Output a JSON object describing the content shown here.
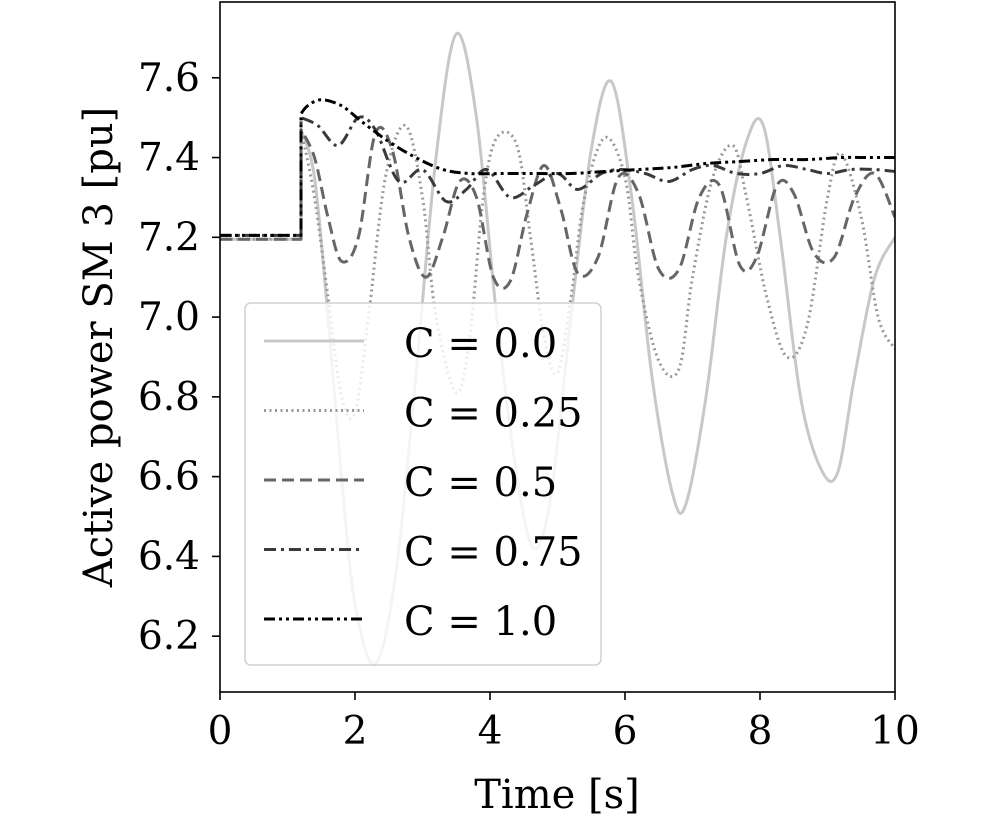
{
  "chart_data": {
    "type": "line",
    "title": "",
    "xlabel": "Time [s]",
    "ylabel": "Active power SM 3 [pu]",
    "xlim": [
      0,
      10
    ],
    "ylim": [
      6.06,
      7.79
    ],
    "xticks": [
      "0",
      "2",
      "4",
      "6",
      "8",
      "10"
    ],
    "yticks": [
      "6.2",
      "6.4",
      "6.6",
      "6.8",
      "7.0",
      "7.2",
      "7.4",
      "7.6"
    ],
    "grid": false,
    "legend_position": "lower-left",
    "series": [
      {
        "name": "C = 0.0",
        "color": "#c8c8c8",
        "style": "solid",
        "x": [
          0,
          1.2,
          1.2,
          1.4,
          1.6,
          1.8,
          2.0,
          2.3,
          2.6,
          2.9,
          3.2,
          3.5,
          3.8,
          4.1,
          4.4,
          4.65,
          4.9,
          5.2,
          5.5,
          5.8,
          6.1,
          6.4,
          6.7,
          6.9,
          7.2,
          7.5,
          7.8,
          8.05,
          8.3,
          8.6,
          8.9,
          9.15,
          9.4,
          9.7,
          10
        ],
        "values": [
          7.195,
          7.195,
          7.47,
          7.35,
          7.0,
          6.6,
          6.28,
          6.13,
          6.35,
          6.85,
          7.4,
          7.71,
          7.5,
          7.0,
          6.6,
          6.42,
          6.55,
          7.0,
          7.42,
          7.59,
          7.3,
          6.85,
          6.56,
          6.53,
          6.8,
          7.2,
          7.44,
          7.48,
          7.2,
          6.8,
          6.62,
          6.61,
          6.85,
          7.1,
          7.2
        ]
      },
      {
        "name": "C = 0.25",
        "color": "#999999",
        "style": "dotted",
        "x": [
          0,
          1.2,
          1.2,
          1.4,
          1.6,
          1.8,
          2.0,
          2.2,
          2.45,
          2.75,
          3.0,
          3.2,
          3.5,
          3.7,
          3.9,
          4.1,
          4.4,
          4.6,
          4.8,
          5.0,
          5.2,
          5.4,
          5.7,
          6.0,
          6.2,
          6.5,
          6.8,
          7.0,
          7.3,
          7.6,
          7.8,
          8.1,
          8.4,
          8.7,
          9.0,
          9.2,
          9.5,
          9.75,
          10
        ],
        "values": [
          7.195,
          7.195,
          7.47,
          7.3,
          7.05,
          6.8,
          6.76,
          7.0,
          7.35,
          7.48,
          7.3,
          7.0,
          6.81,
          6.95,
          7.3,
          7.45,
          7.43,
          7.2,
          6.95,
          6.86,
          7.05,
          7.3,
          7.45,
          7.35,
          7.1,
          6.89,
          6.87,
          7.1,
          7.35,
          7.43,
          7.3,
          7.05,
          6.9,
          6.98,
          7.3,
          7.41,
          7.25,
          7.0,
          6.92
        ]
      },
      {
        "name": "C = 0.5",
        "color": "#666666",
        "style": "dashed",
        "x": [
          0,
          1.2,
          1.2,
          1.4,
          1.6,
          1.8,
          2.05,
          2.3,
          2.55,
          2.8,
          3.05,
          3.3,
          3.55,
          3.8,
          4.05,
          4.3,
          4.55,
          4.8,
          5.05,
          5.3,
          5.6,
          5.9,
          6.2,
          6.5,
          6.8,
          7.1,
          7.4,
          7.7,
          7.95,
          8.25,
          8.5,
          8.8,
          9.1,
          9.4,
          9.7,
          10
        ],
        "values": [
          7.195,
          7.195,
          7.47,
          7.4,
          7.25,
          7.14,
          7.2,
          7.46,
          7.42,
          7.2,
          7.1,
          7.2,
          7.34,
          7.3,
          7.1,
          7.09,
          7.26,
          7.38,
          7.27,
          7.11,
          7.15,
          7.35,
          7.31,
          7.12,
          7.12,
          7.3,
          7.33,
          7.13,
          7.15,
          7.33,
          7.31,
          7.16,
          7.15,
          7.3,
          7.36,
          7.25
        ]
      },
      {
        "name": "C = 0.75",
        "color": "#3a3a3a",
        "style": "dashdot",
        "x": [
          0,
          1.2,
          1.2,
          1.45,
          1.75,
          2.05,
          2.3,
          2.65,
          3.0,
          3.35,
          3.65,
          3.95,
          4.3,
          4.65,
          5.0,
          5.3,
          5.65,
          5.95,
          6.3,
          6.65,
          7.0,
          7.3,
          7.65,
          8.0,
          8.35,
          8.7,
          9.0,
          9.35,
          9.7,
          10
        ],
        "values": [
          7.205,
          7.205,
          7.5,
          7.48,
          7.43,
          7.5,
          7.47,
          7.34,
          7.37,
          7.29,
          7.32,
          7.37,
          7.3,
          7.33,
          7.36,
          7.32,
          7.36,
          7.37,
          7.36,
          7.34,
          7.37,
          7.38,
          7.36,
          7.36,
          7.38,
          7.37,
          7.36,
          7.37,
          7.37,
          7.365
        ]
      },
      {
        "name": "C = 1.0",
        "color": "#000000",
        "style": "dashdotdot",
        "x": [
          0,
          1.2,
          1.2,
          1.3,
          1.5,
          1.8,
          2.1,
          2.5,
          2.9,
          3.3,
          3.7,
          4.2,
          4.7,
          5.2,
          5.7,
          6.2,
          6.7,
          7.2,
          7.7,
          8.2,
          8.7,
          9.2,
          9.6,
          10
        ],
        "values": [
          7.205,
          7.205,
          7.51,
          7.53,
          7.545,
          7.53,
          7.49,
          7.44,
          7.4,
          7.37,
          7.36,
          7.36,
          7.36,
          7.36,
          7.365,
          7.37,
          7.375,
          7.385,
          7.39,
          7.395,
          7.395,
          7.4,
          7.4,
          7.4
        ]
      }
    ]
  }
}
